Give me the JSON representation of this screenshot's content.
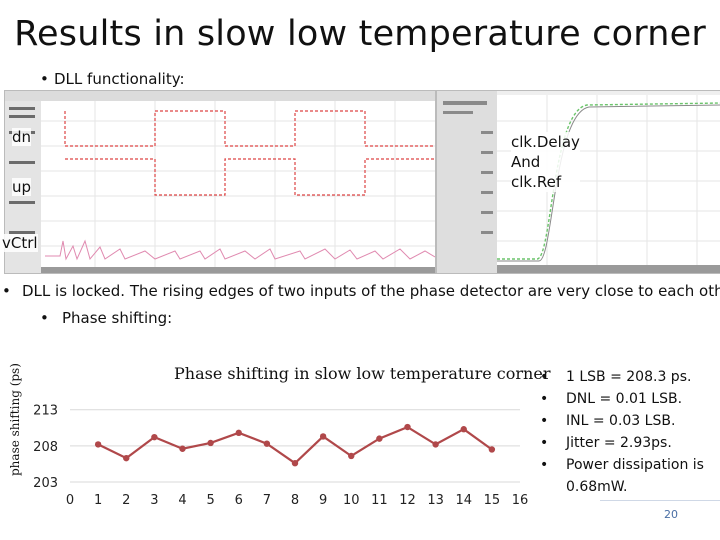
{
  "title": "Results in slow low temperature corner",
  "bullets": {
    "dll_functionality": "DLL functionality:",
    "locked": "DLL is locked. The rising edges of two inputs of  the phase detector are very close to each other.",
    "phase_shifting": "Phase shifting:"
  },
  "wave_labels": {
    "dn": "dn",
    "up": "up",
    "vctrl": "vCtrl",
    "clk": [
      "clk.Delay",
      "And",
      "clk.Ref"
    ]
  },
  "chart_data": {
    "type": "line",
    "title": "Phase shifting in slow low temperature corner",
    "ylabel": "phase shifting (ps)",
    "xlabel": "",
    "x_ticks": [
      "0",
      "1",
      "2",
      "3",
      "4",
      "5",
      "6",
      "7",
      "8",
      "9",
      "10",
      "11",
      "12",
      "13",
      "14",
      "15",
      "16"
    ],
    "y_ticks": [
      "213",
      "208",
      "203"
    ],
    "ylim": [
      203,
      216
    ],
    "xlim": [
      0,
      16
    ],
    "grid": true,
    "color": "#b0484a",
    "series": [
      {
        "x": [
          1,
          2,
          3,
          4,
          5,
          6,
          7,
          8,
          9,
          10,
          11,
          12,
          13,
          14,
          15
        ],
        "values": [
          208.2,
          206.3,
          209.2,
          207.6,
          208.4,
          209.8,
          208.3,
          205.6,
          209.3,
          206.6,
          209.0,
          210.6,
          208.2,
          210.3,
          207.5
        ]
      }
    ]
  },
  "specs": [
    "1 LSB = 208.3 ps.",
    "DNL = 0.01 LSB.",
    "INL = 0.03  LSB.",
    "Jitter =  2.93ps.",
    "Power dissipation is 0.68mW."
  ],
  "page_number": "20"
}
